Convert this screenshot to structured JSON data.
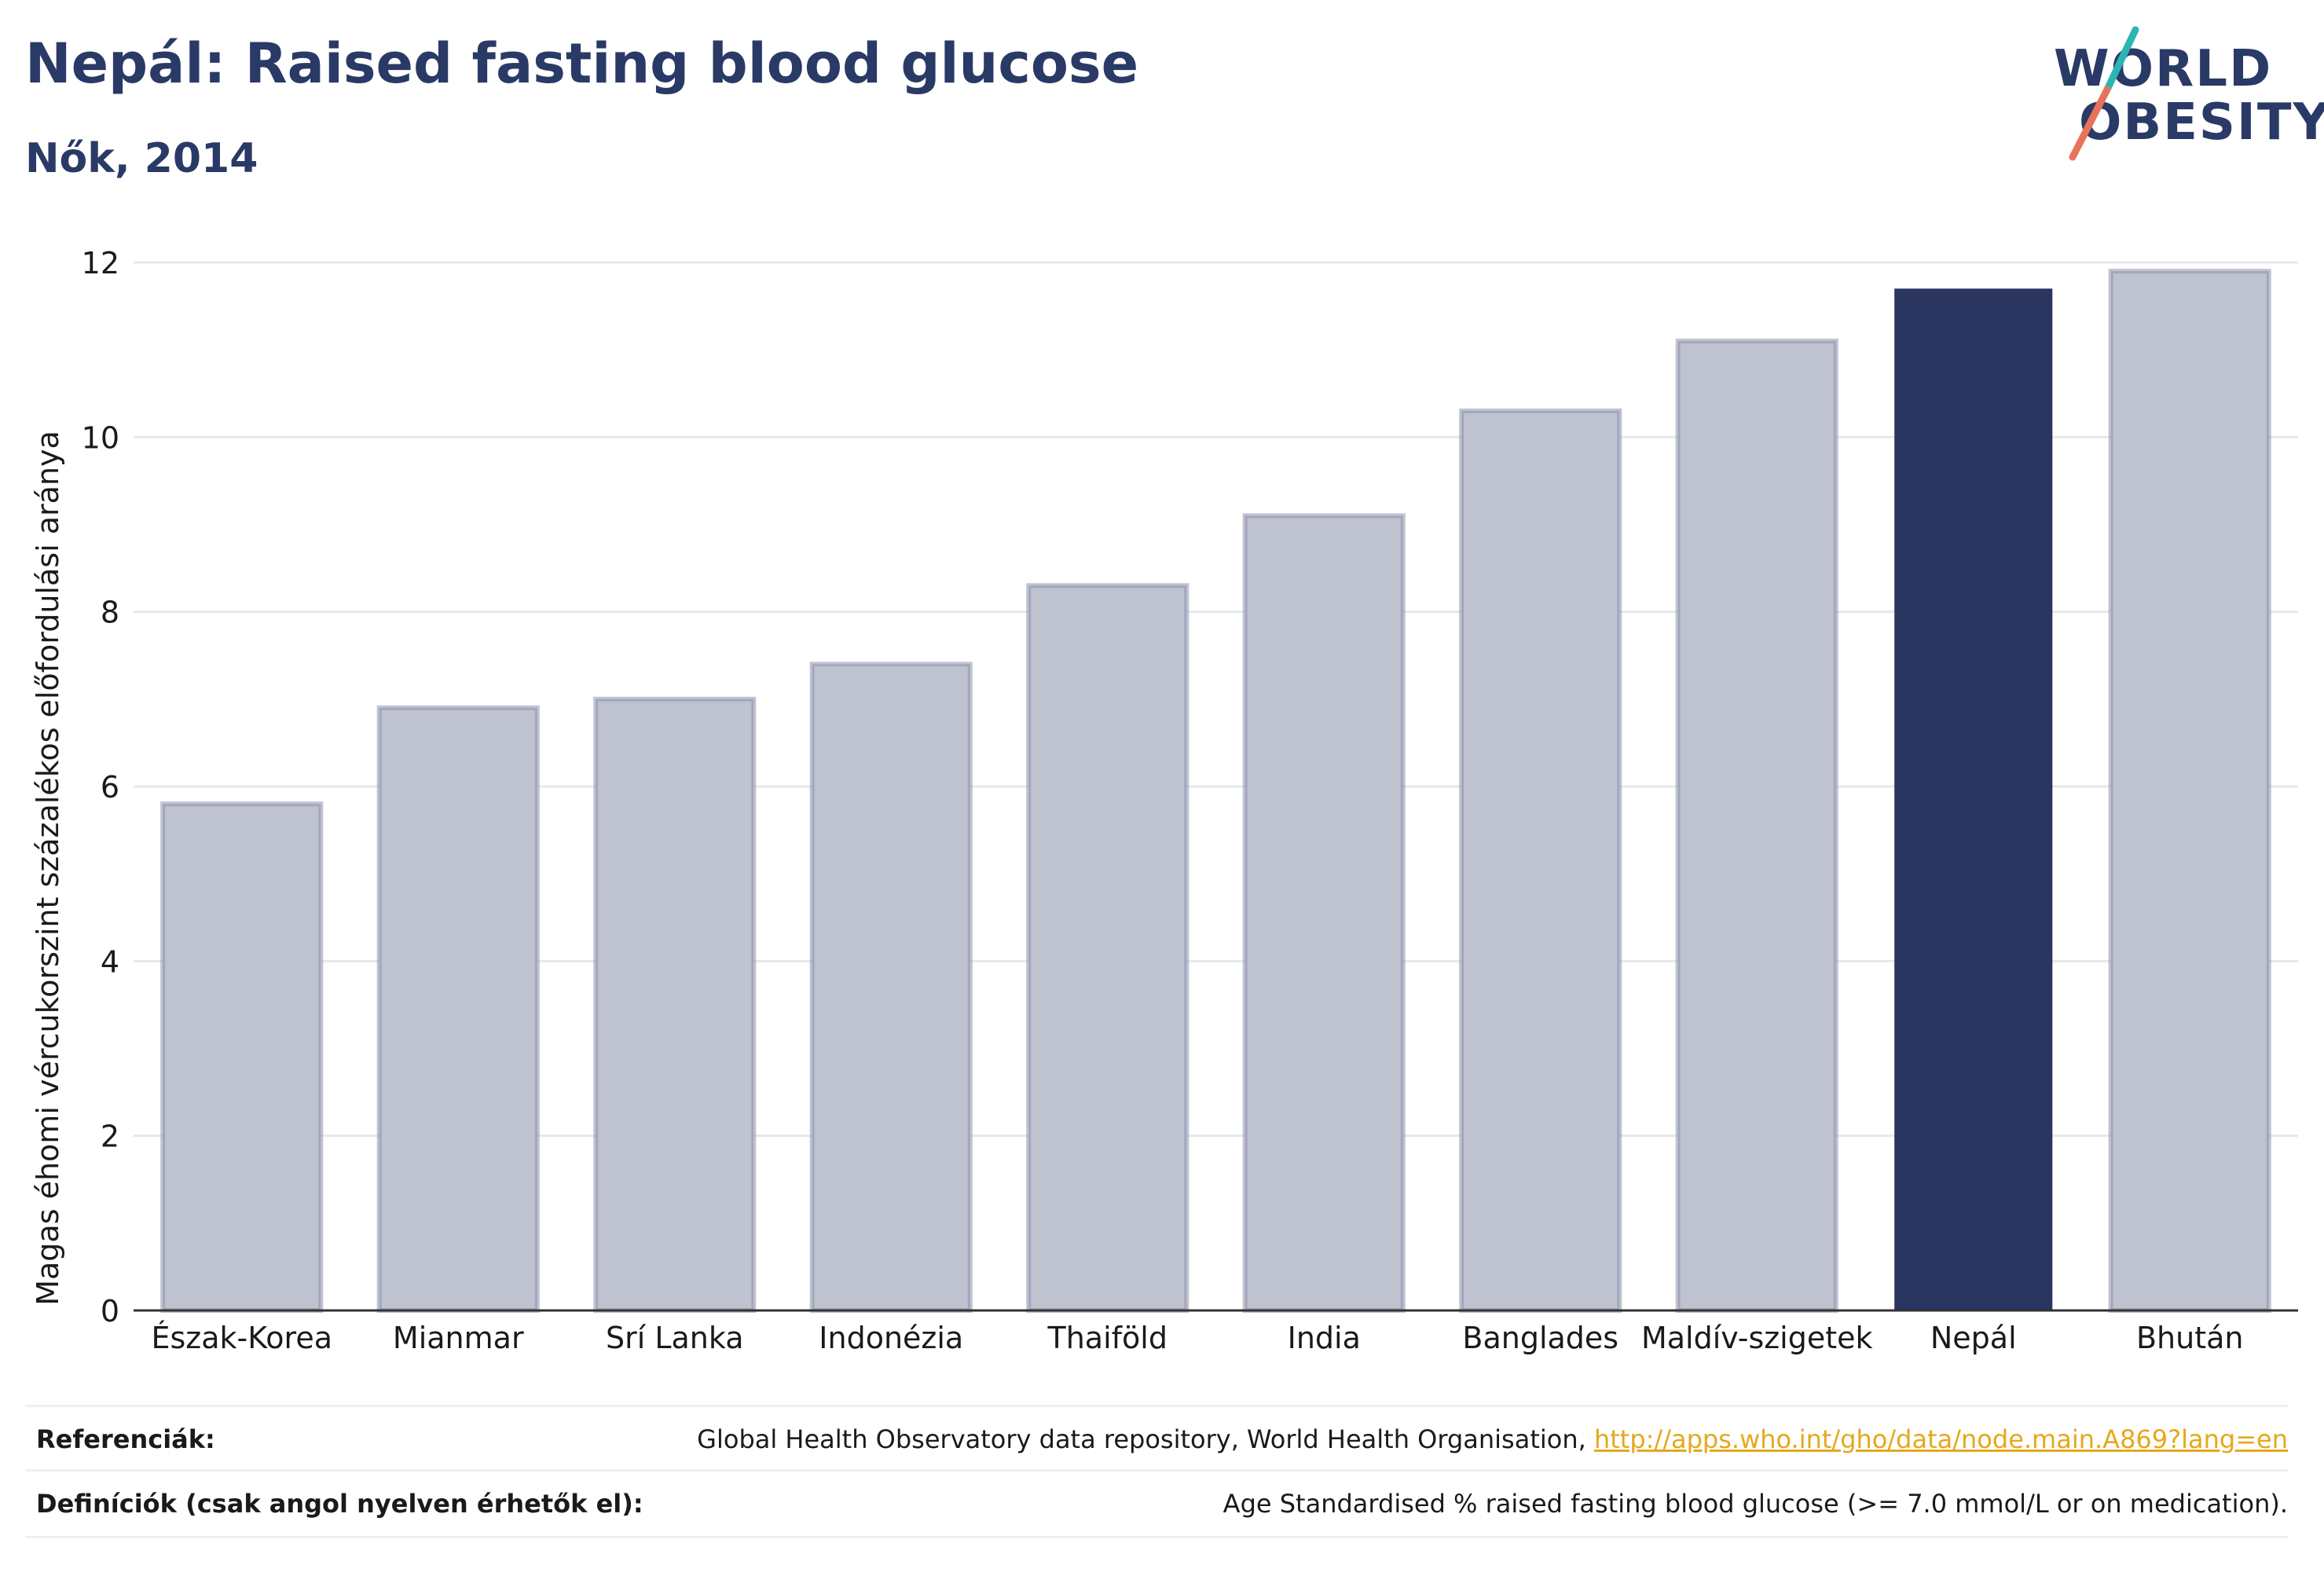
{
  "header": {
    "title": "Nepál: Raised fasting blood glucose",
    "subtitle": "Nők, 2014"
  },
  "logo": {
    "line1": "WORLD",
    "line2": "OBESITY",
    "colors": {
      "text": "#2a3a66",
      "slash_top": "#2bb5b3",
      "slash_bottom": "#e8735a"
    }
  },
  "colors": {
    "bar_default": "#bfc2cf",
    "bar_default_stroke": "#8c91ab",
    "bar_highlight": "#2a3560",
    "grid": "#e6e8ee",
    "axis": "#333333"
  },
  "chart_data": {
    "type": "bar",
    "title": "Nepál: Raised fasting blood glucose",
    "subtitle": "Nők, 2014",
    "xlabel": "",
    "ylabel": "Magas éhomi vércukorszint százalékos előfordulási aránya",
    "ylim": [
      0,
      12
    ],
    "yticks": [
      0,
      2,
      4,
      6,
      8,
      10,
      12
    ],
    "grid": true,
    "categories": [
      "Észak-Korea",
      "Mianmar",
      "Srí Lanka",
      "Indonézia",
      "Thaiföld",
      "India",
      "Banglades",
      "Maldív-szigetek",
      "Nepál",
      "Bhután"
    ],
    "values": [
      5.8,
      6.9,
      7.0,
      7.4,
      8.3,
      9.1,
      10.3,
      11.1,
      11.7,
      11.9
    ],
    "highlight": "Nepál"
  },
  "footer": {
    "references_label": "Referenciák:",
    "references_text": "Global Health Observatory data repository, World Health Organisation,",
    "references_link": "http://apps.who.int/gho/data/node.main.A869?lang=en",
    "definitions_label": "Definíciók (csak angol nyelven érhetők el):",
    "definitions_text": "Age Standardised % raised fasting blood glucose (>= 7.0 mmol/L or on medication)."
  }
}
